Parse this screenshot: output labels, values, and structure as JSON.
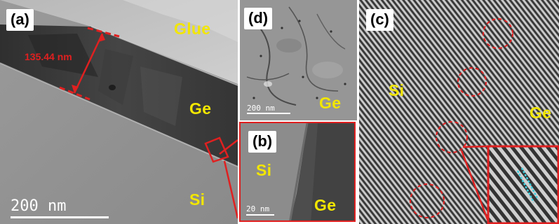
{
  "figure": {
    "panel_a": {
      "label": "(a)",
      "materials": {
        "glue": "Glue",
        "ge": "Ge",
        "si": "Si"
      },
      "measurement": "135.44 nm",
      "scale_bar": "200 nm"
    },
    "panel_d": {
      "label": "(d)",
      "material": "Ge",
      "scale_bar": "200 nm"
    },
    "panel_b": {
      "label": "(b)",
      "materials": {
        "si": "Si",
        "ge": "Ge"
      },
      "scale_bar": "20 nm"
    },
    "panel_c": {
      "label": "(c)",
      "materials": {
        "si": "Si",
        "ge": "Ge"
      }
    }
  },
  "colors": {
    "label_yellow": "#f2e600",
    "annotation_red": "#e02020",
    "cyan_marker": "#3fd0e0"
  }
}
